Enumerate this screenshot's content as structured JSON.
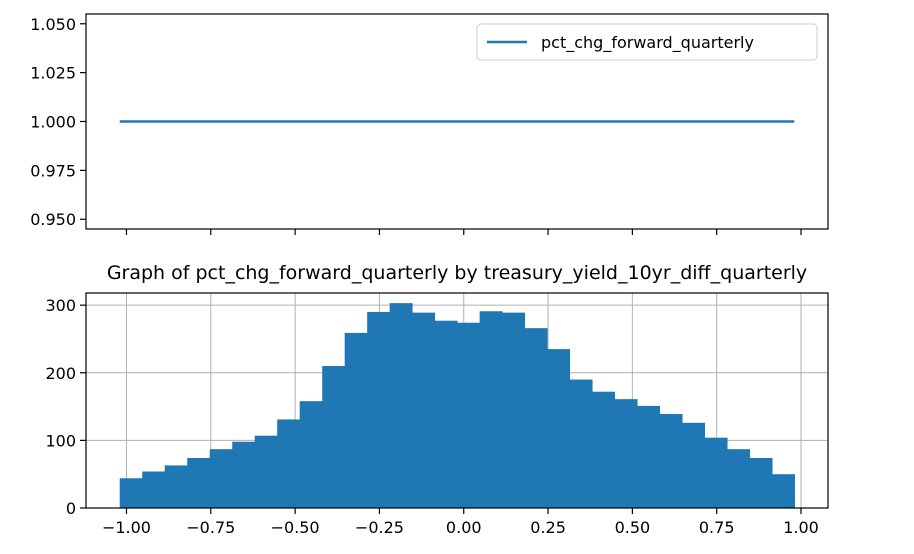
{
  "chart_data": [
    {
      "type": "line",
      "title": "",
      "xlabel": "",
      "ylabel": "",
      "x": [
        -1.02,
        0.98
      ],
      "series": [
        {
          "name": "pct_chg_forward_quarterly",
          "values": [
            1.0,
            1.0
          ],
          "color": "#1f77b4"
        }
      ],
      "xlim": [
        -1.12,
        1.08
      ],
      "ylim": [
        0.945,
        1.055
      ],
      "yticks": [
        "0.950",
        "0.975",
        "1.000",
        "1.025",
        "1.050"
      ],
      "ytick_values": [
        0.95,
        0.975,
        1.0,
        1.025,
        1.05
      ],
      "xtick_values": [
        -1.0,
        -0.75,
        -0.5,
        -0.25,
        0.0,
        0.25,
        0.5,
        0.75,
        1.0
      ],
      "grid": false,
      "legend": "top-right",
      "shared_x_with_next": true
    },
    {
      "type": "bar",
      "subtype": "histogram",
      "title": "Graph of pct_chg_forward_quarterly by treasury_yield_10yr_diff_quarterly",
      "xlabel": "",
      "ylabel": "",
      "bin_start": -1.02,
      "bin_width": 0.0667,
      "values": [
        44,
        54,
        63,
        74,
        87,
        98,
        107,
        131,
        158,
        210,
        259,
        290,
        303,
        289,
        277,
        274,
        291,
        289,
        266,
        235,
        190,
        172,
        161,
        151,
        139,
        126,
        104,
        87,
        74,
        50
      ],
      "color": "#1f77b4",
      "xlim": [
        -1.12,
        1.08
      ],
      "ylim": [
        0,
        318
      ],
      "xticks": [
        "−1.00",
        "−0.75",
        "−0.50",
        "−0.25",
        "0.00",
        "0.25",
        "0.50",
        "0.75",
        "1.00"
      ],
      "xtick_values": [
        -1.0,
        -0.75,
        -0.5,
        -0.25,
        0.0,
        0.25,
        0.5,
        0.75,
        1.0
      ],
      "yticks": [
        "0",
        "100",
        "200",
        "300"
      ],
      "ytick_values": [
        0,
        100,
        200,
        300
      ],
      "grid": true
    }
  ]
}
